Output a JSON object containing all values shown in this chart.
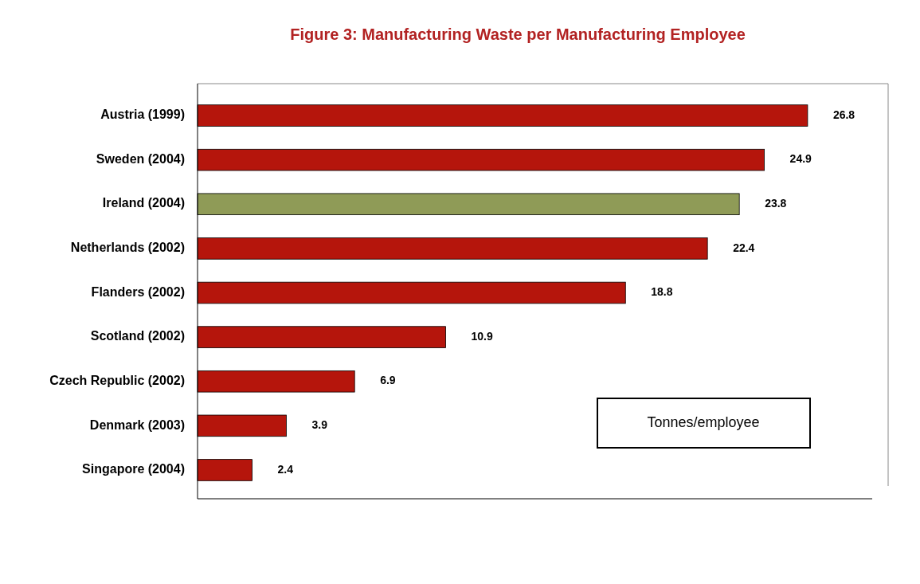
{
  "chart_data": {
    "type": "bar",
    "orientation": "horizontal",
    "title": "Figure 3: Manufacturing Waste per Manufacturing Employee",
    "categories": [
      "Austria (1999)",
      "Sweden (2004)",
      "Ireland (2004)",
      "Netherlands (2002)",
      "Flanders (2002)",
      "Scotland (2002)",
      "Czech Republic (2002)",
      "Denmark (2003)",
      "Singapore (2004)"
    ],
    "values": [
      26.8,
      24.9,
      23.8,
      22.4,
      18.8,
      10.9,
      6.9,
      3.9,
      2.4
    ],
    "colors": [
      "#b5150c",
      "#b5150c",
      "#8f9b57",
      "#b5150c",
      "#b5150c",
      "#b5150c",
      "#b5150c",
      "#b5150c",
      "#b5150c"
    ],
    "data_labels": true,
    "annotations": [
      "Tonnes/employee"
    ]
  }
}
